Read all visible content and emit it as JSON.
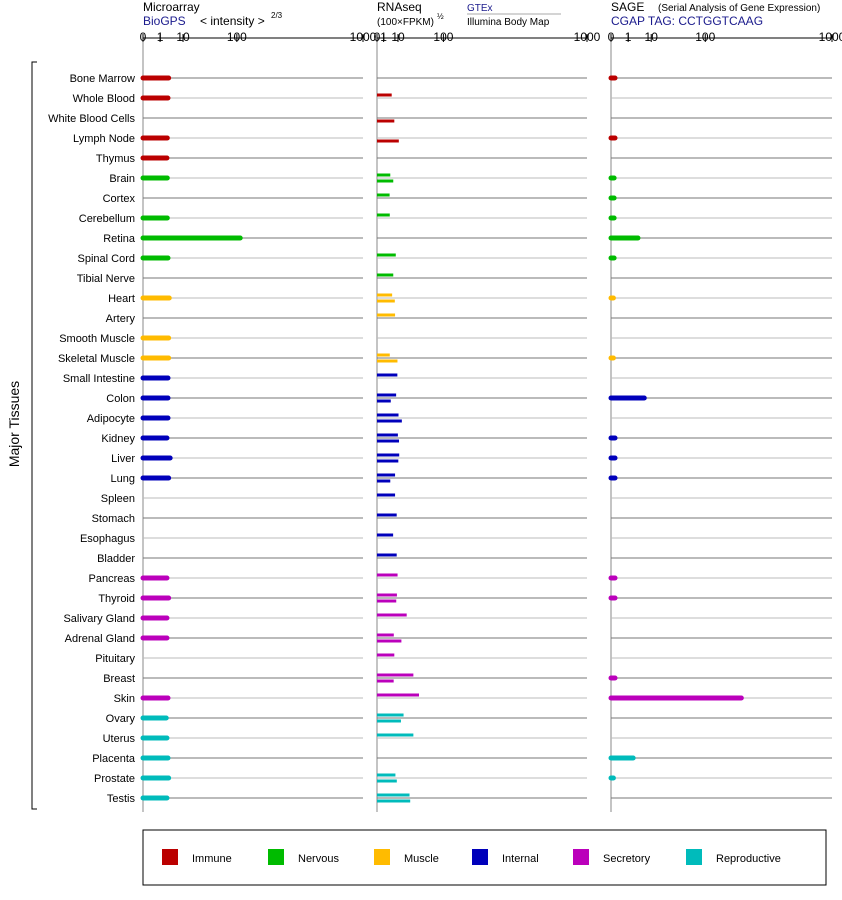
{
  "panels": {
    "microarray": {
      "title": "Microarray",
      "source": "BioGPS",
      "units": "< intensity >",
      "exp": "2/3"
    },
    "rnaseq": {
      "title": "RNAseq",
      "units": "(100×FPKM)",
      "exp": "½",
      "source1": "GTEx",
      "source2": "Illumina Body Map"
    },
    "sage": {
      "title": "SAGE",
      "subtitle": "(Serial Analysis of Gene Expression)",
      "tag": "CGAP TAG: CCTGGTCAAG"
    }
  },
  "axis_ticks": [
    "0",
    "1",
    "10",
    "100",
    "1000"
  ],
  "group_label": "Major Tissues",
  "colors": {
    "Immune": "#bb0000",
    "Nervous": "#00bb00",
    "Muscle": "#ffbb00",
    "Internal": "#0000bb",
    "Secretory": "#bb00bb",
    "Reproductive": "#00bbbb"
  },
  "legend": [
    "Immune",
    "Nervous",
    "Muscle",
    "Internal",
    "Secretory",
    "Reproductive"
  ],
  "chart_data": {
    "type": "bar",
    "xscale": "power (microarray: cube-root-like; rnaseq: sqrt; sage)",
    "xlim": [
      0,
      1000
    ],
    "tissues": [
      {
        "name": "Bone Marrow",
        "system": "Immune",
        "microarray": 3.0,
        "gtex": null,
        "ibm": null,
        "sage": 0.02
      },
      {
        "name": "Whole Blood",
        "system": "Immune",
        "microarray": 2.8,
        "gtex": 4.9,
        "ibm": null,
        "sage": null
      },
      {
        "name": "White Blood Cells",
        "system": "Immune",
        "microarray": null,
        "gtex": null,
        "ibm": 6.8,
        "sage": null
      },
      {
        "name": "Lymph Node",
        "system": "Immune",
        "microarray": 2.6,
        "gtex": null,
        "ibm": 10.8,
        "sage": 0.02
      },
      {
        "name": "Thymus",
        "system": "Immune",
        "microarray": 2.5,
        "gtex": null,
        "ibm": null,
        "sage": null
      },
      {
        "name": "Brain",
        "system": "Nervous",
        "microarray": 2.6,
        "gtex": 4.0,
        "ibm": 6.0,
        "sage": 0.01
      },
      {
        "name": "Cortex",
        "system": "Nervous",
        "microarray": null,
        "gtex": 3.6,
        "ibm": null,
        "sage": 0.01
      },
      {
        "name": "Cerebellum",
        "system": "Nervous",
        "microarray": 2.6,
        "gtex": 3.7,
        "ibm": null,
        "sage": 0.01
      },
      {
        "name": "Retina",
        "system": "Nervous",
        "microarray": 110,
        "gtex": null,
        "ibm": null,
        "sage": 3.4
      },
      {
        "name": "Spinal Cord",
        "system": "Nervous",
        "microarray": 2.8,
        "gtex": 8.0,
        "ibm": null,
        "sage": 0.01
      },
      {
        "name": "Tibial Nerve",
        "system": "Nervous",
        "microarray": null,
        "gtex": 6.0,
        "ibm": null,
        "sage": null
      },
      {
        "name": "Heart",
        "system": "Muscle",
        "microarray": 3.2,
        "gtex": 5.2,
        "ibm": 7.2,
        "sage": 0.005
      },
      {
        "name": "Artery",
        "system": "Muscle",
        "microarray": null,
        "gtex": 7.4,
        "ibm": null,
        "sage": null
      },
      {
        "name": "Smooth Muscle",
        "system": "Muscle",
        "microarray": 3.0,
        "gtex": null,
        "ibm": null,
        "sage": null
      },
      {
        "name": "Skeletal Muscle",
        "system": "Muscle",
        "microarray": 3.0,
        "gtex": 3.7,
        "ibm": 9.5,
        "sage": 0.005
      },
      {
        "name": "Small Intestine",
        "system": "Internal",
        "microarray": 2.8,
        "gtex": 9.4,
        "ibm": null,
        "sage": null
      },
      {
        "name": "Colon",
        "system": "Internal",
        "microarray": 2.8,
        "gtex": 8.3,
        "ibm": 4.3,
        "sage": 6.0
      },
      {
        "name": "Adipocyte",
        "system": "Internal",
        "microarray": 2.8,
        "gtex": 10.5,
        "ibm": 14.0,
        "sage": null
      },
      {
        "name": "Kidney",
        "system": "Internal",
        "microarray": 2.5,
        "gtex": 9.9,
        "ibm": 11.0,
        "sage": 0.02
      },
      {
        "name": "Liver",
        "system": "Internal",
        "microarray": 3.5,
        "gtex": 11.2,
        "ibm": 10.3,
        "sage": 0.02
      },
      {
        "name": "Lung",
        "system": "Internal",
        "microarray": 3.0,
        "gtex": 7.4,
        "ibm": 4.0,
        "sage": 0.02
      },
      {
        "name": "Spleen",
        "system": "Internal",
        "microarray": null,
        "gtex": 7.4,
        "ibm": null,
        "sage": null
      },
      {
        "name": "Stomach",
        "system": "Internal",
        "microarray": null,
        "gtex": 8.8,
        "ibm": null,
        "sage": null
      },
      {
        "name": "Esophagus",
        "system": "Internal",
        "microarray": null,
        "gtex": 5.9,
        "ibm": null,
        "sage": null
      },
      {
        "name": "Bladder",
        "system": "Internal",
        "microarray": null,
        "gtex": 8.8,
        "ibm": null,
        "sage": null
      },
      {
        "name": "Pancreas",
        "system": "Secretory",
        "microarray": 2.5,
        "gtex": 9.6,
        "ibm": null,
        "sage": 0.02
      },
      {
        "name": "Thyroid",
        "system": "Secretory",
        "microarray": 3.0,
        "gtex": 9.0,
        "ibm": 8.4,
        "sage": 0.02
      },
      {
        "name": "Salivary Gland",
        "system": "Secretory",
        "microarray": 2.5,
        "gtex": 20.0,
        "ibm": null,
        "sage": null
      },
      {
        "name": "Adrenal Gland",
        "system": "Secretory",
        "microarray": 2.5,
        "gtex": 6.4,
        "ibm": 13.5,
        "sage": null
      },
      {
        "name": "Pituitary",
        "system": "Secretory",
        "microarray": null,
        "gtex": 6.8,
        "ibm": null,
        "sage": null
      },
      {
        "name": "Breast",
        "system": "Secretory",
        "microarray": null,
        "gtex": 30.0,
        "ibm": 6.3,
        "sage": 0.02
      },
      {
        "name": "Skin",
        "system": "Secretory",
        "microarray": 2.8,
        "gtex": 40.0,
        "ibm": null,
        "sage": 240
      },
      {
        "name": "Ovary",
        "system": "Reproductive",
        "microarray": 2.3,
        "gtex": 16.0,
        "ibm": 13.0,
        "sage": null
      },
      {
        "name": "Uterus",
        "system": "Reproductive",
        "microarray": 2.5,
        "gtex": 30.0,
        "ibm": null,
        "sage": null
      },
      {
        "name": "Placenta",
        "system": "Reproductive",
        "microarray": 2.8,
        "gtex": null,
        "ibm": null,
        "sage": 2.0
      },
      {
        "name": "Prostate",
        "system": "Reproductive",
        "microarray": 3.0,
        "gtex": 7.7,
        "ibm": 8.9,
        "sage": 0.005
      },
      {
        "name": "Testis",
        "system": "Reproductive",
        "microarray": 2.5,
        "gtex": 24.0,
        "ibm": 25.0,
        "sage": null
      }
    ]
  }
}
